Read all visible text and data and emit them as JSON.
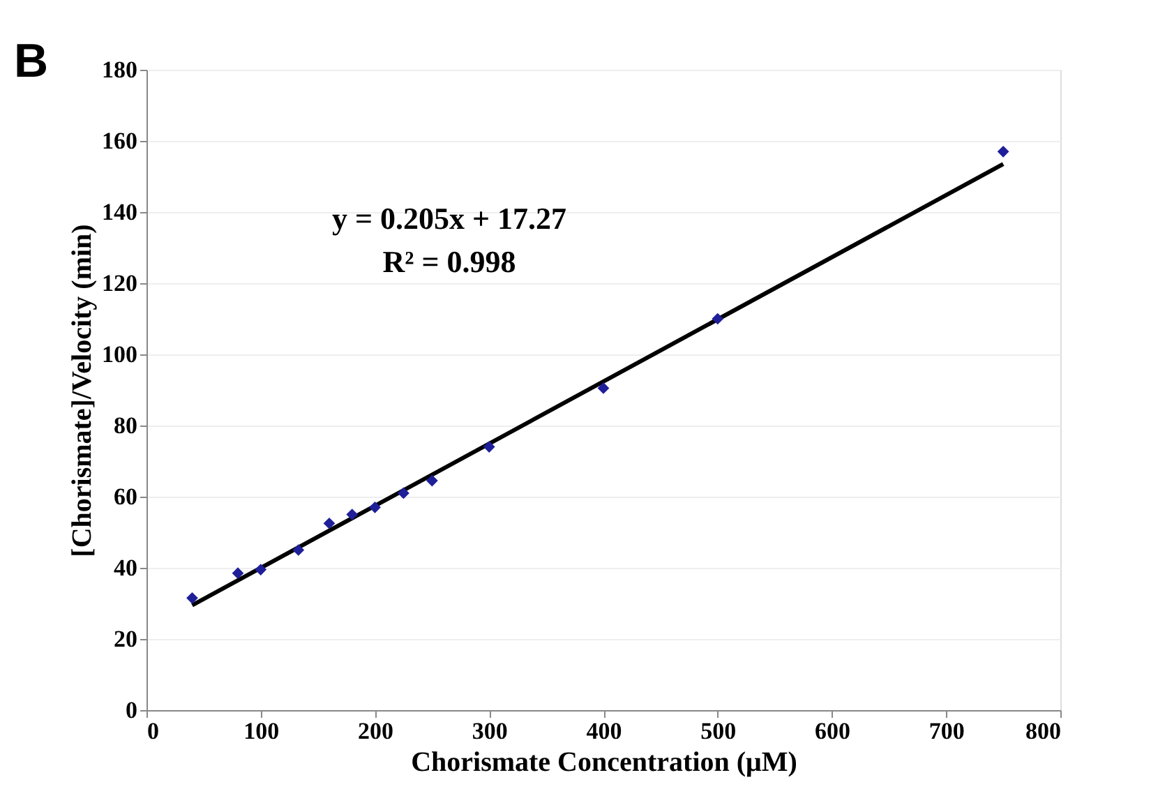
{
  "chart_data": {
    "type": "scatter",
    "xlabel": "Chorismate Concentration (μM)",
    "ylabel": "[Chorismate]/Velocity (min)",
    "xlim": [
      0,
      800
    ],
    "xticks": [
      0,
      100,
      200,
      300,
      400,
      500,
      600,
      700,
      800
    ],
    "ylim": [
      0,
      180
    ],
    "yticks": [
      0,
      20,
      40,
      60,
      80,
      100,
      120,
      140,
      160,
      180
    ],
    "grid": "y",
    "series": [
      {
        "marker": "diamond",
        "color": "#1f1f9a",
        "x": [
          40,
          80,
          100,
          133,
          160,
          180,
          200,
          225,
          250,
          300,
          400,
          500,
          750
        ],
        "values": [
          31.5,
          38.5,
          39.5,
          45,
          52.5,
          55,
          57,
          61,
          64.5,
          74,
          90.5,
          110,
          157
        ]
      },
      {
        "type": "line",
        "marker": "none",
        "color": "#000000",
        "x": [
          40,
          750
        ],
        "values": [
          29.5,
          153.5
        ]
      }
    ],
    "annotations": [
      "y = 0.205x + 17.27",
      "R² = 0.998",
      "B"
    ]
  }
}
